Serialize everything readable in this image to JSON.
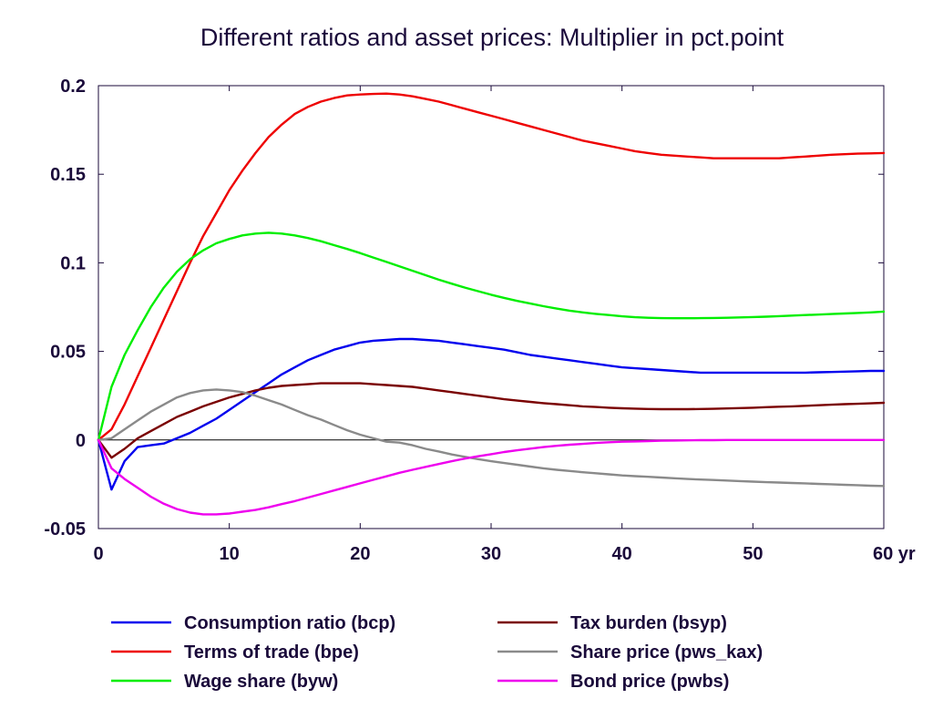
{
  "chart_data": {
    "type": "line",
    "title": "Different ratios and asset prices: Multiplier in pct.point",
    "x_unit_label": "yr",
    "xlim": [
      0,
      60
    ],
    "ylim": [
      -0.05,
      0.2
    ],
    "x_ticks": [
      0,
      10,
      20,
      30,
      40,
      50,
      60
    ],
    "x_tick_labels": [
      "0",
      "10",
      "20",
      "30",
      "40",
      "50",
      "60 yr"
    ],
    "y_ticks": [
      -0.05,
      0,
      0.05,
      0.1,
      0.15,
      0.2
    ],
    "y_tick_labels": [
      "-0.05",
      "0",
      "0.05",
      "0.1",
      "0.15",
      "0.2"
    ],
    "grid": false,
    "zero_line": true,
    "legend_placement": "bottom",
    "x": [
      0,
      1,
      2,
      3,
      4,
      5,
      6,
      7,
      8,
      9,
      10,
      11,
      12,
      13,
      14,
      15,
      16,
      17,
      18,
      19,
      20,
      21,
      22,
      23,
      24,
      25,
      26,
      27,
      28,
      29,
      30,
      31,
      32,
      33,
      34,
      35,
      36,
      37,
      38,
      39,
      40,
      41,
      42,
      43,
      44,
      45,
      46,
      47,
      48,
      49,
      50,
      51,
      52,
      53,
      54,
      55,
      56,
      57,
      58,
      59,
      60
    ],
    "series": [
      {
        "name": "Consumption ratio (bcp)",
        "color": "#0000ee",
        "values": [
          0,
          -0.028,
          -0.012,
          -0.004,
          -0.003,
          -0.002,
          0.001,
          0.004,
          0.008,
          0.012,
          0.017,
          0.022,
          0.027,
          0.032,
          0.037,
          0.041,
          0.045,
          0.048,
          0.051,
          0.053,
          0.055,
          0.056,
          0.0565,
          0.057,
          0.057,
          0.0565,
          0.056,
          0.055,
          0.054,
          0.053,
          0.052,
          0.051,
          0.0495,
          0.048,
          0.047,
          0.046,
          0.045,
          0.044,
          0.043,
          0.042,
          0.041,
          0.0405,
          0.04,
          0.0395,
          0.039,
          0.0385,
          0.038,
          0.038,
          0.038,
          0.038,
          0.038,
          0.038,
          0.038,
          0.038,
          0.038,
          0.0382,
          0.0384,
          0.0386,
          0.0388,
          0.039,
          0.039
        ]
      },
      {
        "name": "Terms of trade (bpe)",
        "color": "#ee0000",
        "values": [
          0,
          0.006,
          0.02,
          0.036,
          0.052,
          0.068,
          0.084,
          0.1,
          0.115,
          0.128,
          0.141,
          0.152,
          0.162,
          0.171,
          0.178,
          0.184,
          0.188,
          0.191,
          0.193,
          0.1945,
          0.195,
          0.1953,
          0.1955,
          0.195,
          0.194,
          0.1925,
          0.191,
          0.189,
          0.187,
          0.185,
          0.183,
          0.181,
          0.179,
          0.177,
          0.175,
          0.173,
          0.171,
          0.169,
          0.1675,
          0.166,
          0.1645,
          0.163,
          0.162,
          0.161,
          0.1605,
          0.16,
          0.1595,
          0.159,
          0.159,
          0.159,
          0.159,
          0.159,
          0.159,
          0.1595,
          0.16,
          0.1605,
          0.161,
          0.1613,
          0.1616,
          0.1618,
          0.162
        ]
      },
      {
        "name": "Wage share (byw)",
        "color": "#00ee00",
        "values": [
          0,
          0.03,
          0.048,
          0.062,
          0.075,
          0.086,
          0.095,
          0.102,
          0.107,
          0.111,
          0.1135,
          0.1155,
          0.1165,
          0.117,
          0.1165,
          0.1155,
          0.114,
          0.1122,
          0.11,
          0.1078,
          0.1055,
          0.103,
          0.1005,
          0.098,
          0.0955,
          0.093,
          0.0905,
          0.0882,
          0.086,
          0.084,
          0.082,
          0.0802,
          0.0785,
          0.077,
          0.0755,
          0.0742,
          0.073,
          0.072,
          0.0712,
          0.0705,
          0.0698,
          0.0693,
          0.069,
          0.0688,
          0.0687,
          0.0687,
          0.0688,
          0.0689,
          0.069,
          0.0692,
          0.0694,
          0.0696,
          0.0699,
          0.0702,
          0.0705,
          0.0708,
          0.0711,
          0.0714,
          0.0717,
          0.072,
          0.0725
        ]
      },
      {
        "name": "Tax burden (bsyp)",
        "color": "#7a0000",
        "values": [
          0,
          -0.01,
          -0.005,
          0.001,
          0.005,
          0.009,
          0.013,
          0.016,
          0.019,
          0.0215,
          0.024,
          0.026,
          0.028,
          0.0295,
          0.0305,
          0.031,
          0.0315,
          0.032,
          0.032,
          0.032,
          0.032,
          0.0315,
          0.031,
          0.0305,
          0.03,
          0.029,
          0.028,
          0.027,
          0.026,
          0.025,
          0.024,
          0.023,
          0.0222,
          0.0215,
          0.0208,
          0.0202,
          0.0196,
          0.019,
          0.0186,
          0.0182,
          0.0179,
          0.0177,
          0.0175,
          0.0174,
          0.0174,
          0.0174,
          0.0175,
          0.0176,
          0.0178,
          0.018,
          0.0182,
          0.0185,
          0.0188,
          0.019,
          0.0193,
          0.0196,
          0.0199,
          0.0202,
          0.0204,
          0.0207,
          0.021
        ]
      },
      {
        "name": "Share price (pws_kax)",
        "color": "#8a8a8a",
        "values": [
          0,
          0.001,
          0.006,
          0.011,
          0.016,
          0.02,
          0.024,
          0.0265,
          0.028,
          0.0285,
          0.028,
          0.027,
          0.025,
          0.0225,
          0.02,
          0.017,
          0.014,
          0.0115,
          0.0085,
          0.0055,
          0.003,
          0.001,
          -0.001,
          -0.0015,
          -0.003,
          -0.005,
          -0.0065,
          -0.0082,
          -0.0095,
          -0.0108,
          -0.012,
          -0.013,
          -0.014,
          -0.015,
          -0.016,
          -0.0168,
          -0.0175,
          -0.0182,
          -0.0188,
          -0.0194,
          -0.02,
          -0.0204,
          -0.0208,
          -0.0212,
          -0.0216,
          -0.022,
          -0.0223,
          -0.0226,
          -0.0229,
          -0.0232,
          -0.0235,
          -0.0238,
          -0.024,
          -0.0243,
          -0.0245,
          -0.0248,
          -0.025,
          -0.0253,
          -0.0255,
          -0.0258,
          -0.026
        ]
      },
      {
        "name": "Bond price (pwbs)",
        "color": "#ee00ee",
        "values": [
          0,
          -0.016,
          -0.022,
          -0.027,
          -0.032,
          -0.036,
          -0.039,
          -0.041,
          -0.042,
          -0.042,
          -0.0415,
          -0.0405,
          -0.0395,
          -0.038,
          -0.0362,
          -0.0345,
          -0.0325,
          -0.0305,
          -0.0285,
          -0.0265,
          -0.0245,
          -0.0225,
          -0.0205,
          -0.0185,
          -0.0168,
          -0.0152,
          -0.0136,
          -0.012,
          -0.0105,
          -0.0092,
          -0.008,
          -0.0068,
          -0.0058,
          -0.0049,
          -0.004,
          -0.0033,
          -0.0027,
          -0.0022,
          -0.0017,
          -0.0013,
          -0.001,
          -0.0008,
          -0.0006,
          -0.0004,
          -0.0003,
          -0.0002,
          -0.0001,
          -0.0001,
          0,
          0,
          0,
          0,
          0,
          0,
          0,
          0,
          0,
          0,
          0,
          0,
          0
        ]
      }
    ]
  },
  "colors": {
    "text": "#1a0a3a",
    "axis": "#1a0a3a"
  }
}
